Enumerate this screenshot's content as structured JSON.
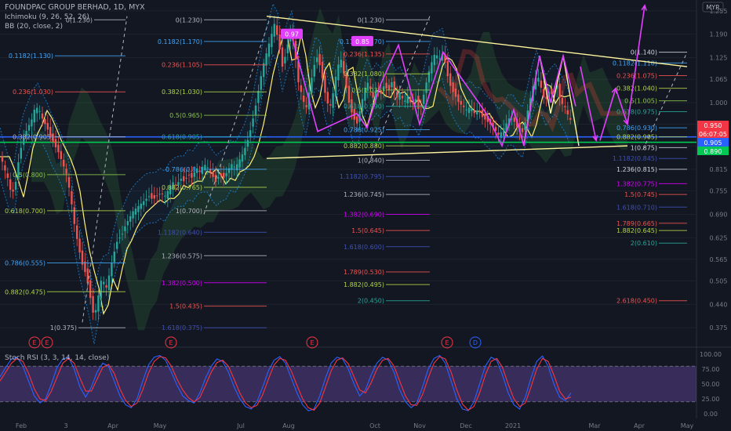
{
  "header": {
    "title": "FOUNDPAC GROUP BERHAD, 1D, MYX",
    "ind1": "Ichimoku (9, 26, 52, 26)",
    "ind2": "BB (20, close, 2)"
  },
  "currency": "MYR",
  "stoch_label": "Stoch RSI (3, 3, 14, 14, close)",
  "chart_data": [
    {
      "type": "candlestick",
      "xlabel": "",
      "ylabel": "",
      "x_ticks": [
        "Feb",
        "3",
        "Apr",
        "May",
        "Jul",
        "Aug",
        "Oct",
        "Nov",
        "Dec",
        "2021",
        "Mar",
        "Apr",
        "May"
      ],
      "y_ticks": [
        1.255,
        1.19,
        1.125,
        1.065,
        1.0,
        0.94,
        0.88,
        0.815,
        0.755,
        0.69,
        0.625,
        0.565,
        0.505,
        0.44,
        0.375
      ],
      "ylim": [
        0.345,
        1.285
      ],
      "price_tags": [
        {
          "text": "0.950",
          "color": "#f23645"
        },
        {
          "text": "06:07:05",
          "color": "#f23645"
        },
        {
          "text": "0.905",
          "color": "#2962ff"
        },
        {
          "text": "0.890",
          "color": "#00c853"
        }
      ],
      "price_path": [
        [
          0,
          0.86
        ],
        [
          5,
          0.82
        ],
        [
          10,
          0.79
        ],
        [
          15,
          0.74
        ],
        [
          20,
          0.78
        ],
        [
          25,
          0.86
        ],
        [
          30,
          0.9
        ],
        [
          35,
          0.93
        ],
        [
          40,
          0.95
        ],
        [
          45,
          0.99
        ],
        [
          50,
          0.98
        ],
        [
          55,
          0.95
        ],
        [
          60,
          0.93
        ],
        [
          65,
          0.9
        ],
        [
          70,
          0.88
        ],
        [
          75,
          0.86
        ],
        [
          80,
          0.83
        ],
        [
          85,
          0.8
        ],
        [
          90,
          0.74
        ],
        [
          95,
          0.66
        ],
        [
          100,
          0.6
        ],
        [
          105,
          0.55
        ],
        [
          110,
          0.52
        ],
        [
          115,
          0.46
        ],
        [
          120,
          0.4
        ],
        [
          125,
          0.46
        ],
        [
          130,
          0.52
        ],
        [
          135,
          0.48
        ],
        [
          140,
          0.53
        ],
        [
          145,
          0.58
        ],
        [
          150,
          0.62
        ],
        [
          155,
          0.63
        ],
        [
          160,
          0.66
        ],
        [
          165,
          0.68
        ],
        [
          170,
          0.7
        ],
        [
          175,
          0.71
        ],
        [
          180,
          0.72
        ],
        [
          185,
          0.73
        ],
        [
          190,
          0.74
        ],
        [
          195,
          0.73
        ],
        [
          200,
          0.74
        ],
        [
          205,
          0.75
        ],
        [
          210,
          0.74
        ],
        [
          215,
          0.76
        ],
        [
          220,
          0.78
        ],
        [
          225,
          0.77
        ],
        [
          230,
          0.79
        ],
        [
          235,
          0.78
        ],
        [
          240,
          0.8
        ],
        [
          245,
          0.79
        ],
        [
          250,
          0.82
        ],
        [
          255,
          0.81
        ],
        [
          260,
          0.83
        ],
        [
          265,
          0.82
        ],
        [
          270,
          0.8
        ],
        [
          275,
          0.78
        ],
        [
          280,
          0.8
        ],
        [
          285,
          0.79
        ],
        [
          290,
          0.81
        ],
        [
          295,
          0.83
        ],
        [
          300,
          0.82
        ],
        [
          305,
          0.84
        ],
        [
          310,
          0.86
        ],
        [
          315,
          0.89
        ],
        [
          320,
          0.93
        ],
        [
          325,
          0.98
        ],
        [
          330,
          1.04
        ],
        [
          335,
          1.1
        ],
        [
          340,
          1.14
        ],
        [
          345,
          1.18
        ],
        [
          350,
          1.22
        ],
        [
          355,
          1.17
        ],
        [
          360,
          1.1
        ],
        [
          365,
          1.14
        ],
        [
          370,
          1.2
        ],
        [
          375,
          1.16
        ],
        [
          380,
          1.06
        ],
        [
          385,
          1.02
        ],
        [
          390,
          0.98
        ],
        [
          395,
          1.04
        ],
        [
          400,
          1.1
        ],
        [
          405,
          1.13
        ],
        [
          410,
          1.08
        ],
        [
          415,
          1.02
        ],
        [
          420,
          0.98
        ],
        [
          425,
          1.03
        ],
        [
          430,
          1.1
        ],
        [
          435,
          1.12
        ],
        [
          440,
          1.06
        ],
        [
          445,
          1.0
        ],
        [
          450,
          0.96
        ],
        [
          455,
          0.94
        ],
        [
          460,
          0.99
        ],
        [
          465,
          1.04
        ],
        [
          470,
          1.06
        ],
        [
          475,
          1.01
        ],
        [
          480,
          1.04
        ],
        [
          485,
          1.02
        ],
        [
          490,
          1.05
        ],
        [
          495,
          1.03
        ],
        [
          500,
          1.06
        ],
        [
          505,
          1.01
        ],
        [
          510,
          1.03
        ],
        [
          515,
          1.0
        ],
        [
          520,
          1.02
        ],
        [
          525,
          0.99
        ],
        [
          530,
          1.01
        ],
        [
          535,
          0.97
        ],
        [
          540,
          1.02
        ],
        [
          545,
          1.07
        ],
        [
          550,
          1.11
        ],
        [
          555,
          1.14
        ],
        [
          560,
          1.12
        ],
        [
          565,
          1.14
        ],
        [
          570,
          1.08
        ],
        [
          575,
          1.04
        ],
        [
          580,
          1.02
        ],
        [
          585,
          1.0
        ],
        [
          590,
          0.99
        ],
        [
          595,
          0.98
        ],
        [
          600,
          0.99
        ],
        [
          605,
          0.97
        ],
        [
          610,
          0.98
        ],
        [
          615,
          0.96
        ],
        [
          620,
          0.95
        ],
        [
          625,
          0.94
        ],
        [
          630,
          0.93
        ],
        [
          635,
          0.91
        ],
        [
          640,
          0.92
        ],
        [
          645,
          0.94
        ],
        [
          650,
          0.96
        ],
        [
          655,
          0.95
        ],
        [
          660,
          0.93
        ],
        [
          665,
          0.91
        ],
        [
          670,
          0.95
        ],
        [
          675,
          1.0
        ],
        [
          680,
          1.05
        ],
        [
          685,
          1.08
        ],
        [
          690,
          1.04
        ],
        [
          695,
          1.0
        ],
        [
          700,
          1.03
        ],
        [
          705,
          1.02
        ],
        [
          710,
          1.05
        ],
        [
          715,
          1.0
        ],
        [
          720,
          0.99
        ],
        [
          725,
          0.96
        ],
        [
          728,
          0.95
        ]
      ],
      "fib_levels": [
        {
          "text": "1(0.375)",
          "color": "#b2b5be",
          "price": 0.375
        },
        {
          "text": "0.882(0.475)",
          "color": "#b2d34a",
          "price": 0.475
        },
        {
          "text": "0.786(0.555)",
          "color": "#42a5f5",
          "price": 0.555
        },
        {
          "text": "0.618(0.700)",
          "color": "#b2d34a",
          "price": 0.7
        },
        {
          "text": "0.5(0.800)",
          "color": "#8bc34a",
          "price": 0.8
        },
        {
          "text": "0.382(0.905)",
          "color": "#b2b5be",
          "price": 0.905
        },
        {
          "text": "0.236(1.030)",
          "color": "#ef5350",
          "price": 1.03
        },
        {
          "text": "0.1182(1.130)",
          "color": "#42a5f5",
          "price": 1.13
        },
        {
          "text": "0(1.230)",
          "color": "#b2b5be",
          "price": 1.23
        },
        {
          "text": "0(1.230)",
          "color": "#b2b5be",
          "price": 1.23
        },
        {
          "text": "0.1182(1.170)",
          "color": "#42a5f5",
          "price": 1.17
        },
        {
          "text": "0.236(1.105)",
          "color": "#ef5350",
          "price": 1.105
        },
        {
          "text": "0.382(1.030)",
          "color": "#b2d34a",
          "price": 1.03
        },
        {
          "text": "0.5(0.965)",
          "color": "#8bc34a",
          "price": 0.965
        },
        {
          "text": "0.618(0.905)",
          "color": "#26a69a",
          "price": 0.905
        },
        {
          "text": "0.786(0.8..)",
          "color": "#42a5f5",
          "price": 0.815
        },
        {
          "text": "0.882(0.765)",
          "color": "#b2d34a",
          "price": 0.765
        },
        {
          "text": "1(0.700)",
          "color": "#b2b5be",
          "price": 0.7
        },
        {
          "text": "1.1182(0.640)",
          "color": "#3f51b5",
          "price": 0.64
        },
        {
          "text": "1.236(0.575)",
          "color": "#b2b5be",
          "price": 0.575
        },
        {
          "text": "1.382(0.500)",
          "color": "#d500f9",
          "price": 0.5
        },
        {
          "text": "1.5(0.435)",
          "color": "#ef5350",
          "price": 0.435
        },
        {
          "text": "1.618(0.375)",
          "color": "#3f51b5",
          "price": 0.375
        },
        {
          "text": "0(1.230)",
          "color": "#b2b5be",
          "price": 1.23
        },
        {
          "text": "0.1182(1.170)",
          "color": "#42a5f5",
          "price": 1.17
        },
        {
          "text": "0.236(1.135)",
          "color": "#ef5350",
          "price": 1.135
        },
        {
          "text": "0.382(1.080)",
          "color": "#b2d34a",
          "price": 1.08
        },
        {
          "text": "0.5(1.035)",
          "color": "#8bc34a",
          "price": 1.035
        },
        {
          "text": "0.618(0.990)",
          "color": "#26a69a",
          "price": 0.99
        },
        {
          "text": "0.786(0.925)",
          "color": "#42a5f5",
          "price": 0.925
        },
        {
          "text": "0.882(0.880)",
          "color": "#b2d34a",
          "price": 0.88
        },
        {
          "text": "1(0.840)",
          "color": "#b2b5be",
          "price": 0.84
        },
        {
          "text": "1.1182(0.795)",
          "color": "#3f51b5",
          "price": 0.795
        },
        {
          "text": "1.236(0.745)",
          "color": "#b2b5be",
          "price": 0.745
        },
        {
          "text": "1.382(0.690)",
          "color": "#d500f9",
          "price": 0.69
        },
        {
          "text": "1.5(0.645)",
          "color": "#ef5350",
          "price": 0.645
        },
        {
          "text": "1.618(0.600)",
          "color": "#3f51b5",
          "price": 0.6
        },
        {
          "text": "1.789(0.530)",
          "color": "#ef5350",
          "price": 0.53
        },
        {
          "text": "1.882(0.495)",
          "color": "#b2d34a",
          "price": 0.495
        },
        {
          "text": "2(0.450)",
          "color": "#26a69a",
          "price": 0.45
        },
        {
          "text": "0(1.140)",
          "color": "#d1d4dc",
          "price": 1.14
        },
        {
          "text": "0.1182(1.110)",
          "color": "#42a5f5",
          "price": 1.11
        },
        {
          "text": "0.236(1.075)",
          "color": "#ef5350",
          "price": 1.075
        },
        {
          "text": "0.382(1.040)",
          "color": "#b2d34a",
          "price": 1.04
        },
        {
          "text": "0.5(1.005)",
          "color": "#8bc34a",
          "price": 1.005
        },
        {
          "text": "0.618(0.975)",
          "color": "#26a69a",
          "price": 0.975
        },
        {
          "text": "0.786(0.930)",
          "color": "#42a5f5",
          "price": 0.93
        },
        {
          "text": "0.882(0.905)",
          "color": "#b2d34a",
          "price": 0.905
        },
        {
          "text": "1(0.875)",
          "color": "#d1d4dc",
          "price": 0.875
        },
        {
          "text": "1.1182(0.845)",
          "color": "#3f51b5",
          "price": 0.845
        },
        {
          "text": "1.236(0.815)",
          "color": "#d1d4dc",
          "price": 0.815
        },
        {
          "text": "1.382(0.775)",
          "color": "#d500f9",
          "price": 0.775
        },
        {
          "text": "1.5(0.745)",
          "color": "#ef5350",
          "price": 0.745
        },
        {
          "text": "1.618(0.710)",
          "color": "#3f51b5",
          "price": 0.71
        },
        {
          "text": "1.789(0.665)",
          "color": "#ef5350",
          "price": 0.665
        },
        {
          "text": "1.882(0.645)",
          "color": "#b2d34a",
          "price": 0.645
        },
        {
          "text": "2(0.610)",
          "color": "#26a69a",
          "price": 0.61
        },
        {
          "text": "2.618(0.450)",
          "color": "#ef5350",
          "price": 0.45
        }
      ],
      "badges": [
        {
          "text": "0.97",
          "color": "#e040fb"
        },
        {
          "text": "0.85",
          "color": "#e040fb"
        }
      ],
      "horizontal_lines": [
        {
          "price": 0.905,
          "color": "#2962ff"
        },
        {
          "price": 0.89,
          "color": "#00c853"
        }
      ],
      "event_markers": [
        "E",
        "E",
        "E",
        "E",
        "E",
        "D"
      ]
    },
    {
      "type": "line",
      "title": "Stoch RSI (3, 3, 14, 14, close)",
      "y_ticks": [
        100.0,
        75.0,
        50.0,
        25.0,
        0.0
      ],
      "ylim": [
        -8,
        108
      ],
      "band": [
        20,
        80
      ],
      "series": [
        {
          "color": "#2962ff",
          "values": [
            62,
            78,
            92,
            95,
            80,
            55,
            30,
            18,
            25,
            50,
            78,
            92,
            95,
            75,
            45,
            28,
            45,
            70,
            85,
            80,
            55,
            30,
            15,
            10,
            25,
            55,
            82,
            95,
            98,
            90,
            70,
            48,
            30,
            22,
            18,
            35,
            60,
            80,
            92,
            88,
            70,
            45,
            25,
            12,
            8,
            20,
            45,
            72,
            90,
            96,
            85,
            60,
            35,
            15,
            5,
            8,
            30,
            60,
            85,
            95,
            92,
            75,
            50,
            30,
            40,
            65,
            85,
            95,
            90,
            70,
            40,
            20,
            10,
            18,
            45,
            75,
            93,
            98,
            85,
            55,
            25,
            8,
            5,
            20,
            50,
            80,
            95,
            90,
            65,
            35,
            15,
            8,
            28,
            60,
            88,
            97,
            80,
            50,
            28,
            22,
            35
          ]
        },
        {
          "color": "#f23645",
          "values": [
            55,
            70,
            85,
            93,
            88,
            68,
            42,
            25,
            22,
            38,
            62,
            85,
            93,
            85,
            60,
            38,
            38,
            58,
            78,
            83,
            68,
            42,
            22,
            12,
            18,
            40,
            68,
            88,
            96,
            94,
            80,
            58,
            40,
            27,
            20,
            27,
            48,
            70,
            86,
            90,
            80,
            58,
            35,
            18,
            10,
            14,
            32,
            58,
            82,
            93,
            90,
            72,
            48,
            25,
            10,
            6,
            18,
            45,
            72,
            90,
            94,
            84,
            62,
            40,
            35,
            52,
            75,
            90,
            93,
            80,
            55,
            30,
            15,
            14,
            32,
            60,
            85,
            96,
            92,
            70,
            40,
            16,
            6,
            12,
            35,
            65,
            88,
            93,
            78,
            50,
            25,
            12,
            18,
            45,
            75,
            93,
            88,
            65,
            38,
            25,
            28
          ]
        }
      ]
    }
  ]
}
